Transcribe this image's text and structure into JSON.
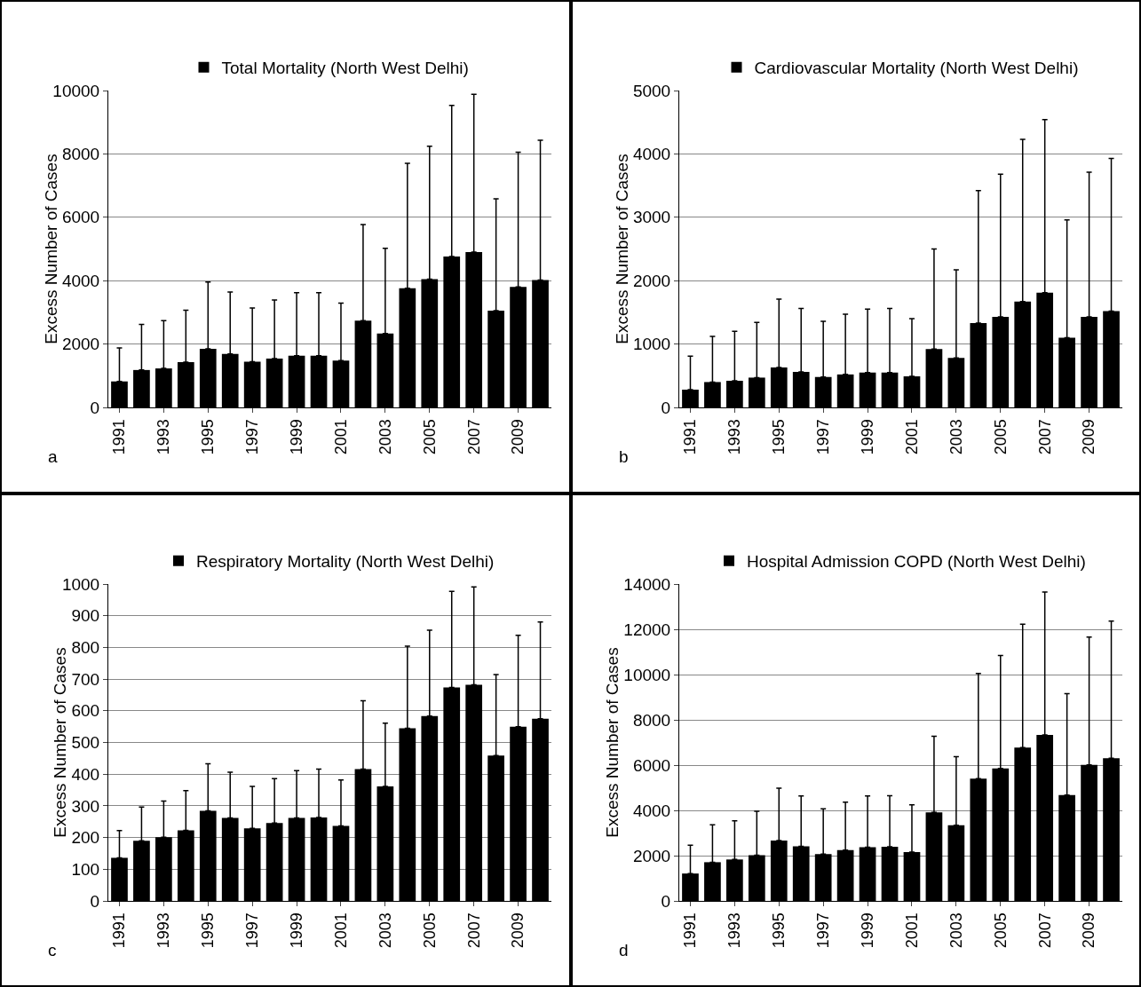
{
  "chart_data": [
    {
      "type": "bar",
      "categories": [
        "1991",
        null,
        "1993",
        null,
        "1995",
        null,
        "1997",
        null,
        "1999",
        null,
        "2001",
        null,
        "2003",
        null,
        "2005",
        null,
        "2007",
        null,
        "2009",
        null
      ],
      "ylabel": "Excess Number of Cases",
      "ylim": [
        0,
        10000
      ],
      "yticks": [
        0,
        2000,
        4000,
        6000,
        8000,
        10000
      ],
      "grid": "y",
      "legend": "top",
      "annotations": [
        "a"
      ],
      "series": [
        {
          "name": "Total Mortality (North West Delhi)",
          "color": "#000000",
          "values": [
            820,
            1180,
            1230,
            1430,
            1850,
            1690,
            1440,
            1540,
            1630,
            1630,
            1480,
            2740,
            2330,
            3760,
            4050,
            4760,
            4900,
            3050,
            3800,
            4020
          ],
          "errors": [
            [
              820,
              1880
            ],
            [
              1180,
              2620
            ],
            [
              1230,
              2740
            ],
            [
              1430,
              3070
            ],
            [
              1850,
              3960
            ],
            [
              1690,
              3640
            ],
            [
              1440,
              3140
            ],
            [
              1540,
              3390
            ],
            [
              1630,
              3620
            ],
            [
              1630,
              3620
            ],
            [
              1480,
              3290
            ],
            [
              2740,
              5770
            ],
            [
              2330,
              5020
            ],
            [
              3760,
              7700
            ],
            [
              4050,
              8240
            ],
            [
              4760,
              9530
            ],
            [
              4900,
              9880
            ],
            [
              3050,
              6580
            ],
            [
              3800,
              8050
            ],
            [
              4020,
              8430
            ]
          ]
        }
      ]
    },
    {
      "type": "bar",
      "categories": [
        "1991",
        null,
        "1993",
        null,
        "1995",
        null,
        "1997",
        null,
        "1999",
        null,
        "2001",
        null,
        "2003",
        null,
        "2005",
        null,
        "2007",
        null,
        "2009",
        null
      ],
      "ylabel": "Excess Number of Cases",
      "ylim": [
        0,
        5000
      ],
      "yticks": [
        0,
        1000,
        2000,
        3000,
        4000,
        5000
      ],
      "grid": "y",
      "legend": "top",
      "annotations": [
        "b"
      ],
      "series": [
        {
          "name": "Cardiovascular Mortality (North West Delhi)",
          "color": "#000000",
          "values": [
            280,
            400,
            420,
            470,
            630,
            560,
            480,
            520,
            550,
            550,
            490,
            920,
            780,
            1330,
            1430,
            1670,
            1810,
            1100,
            1430,
            1520
          ],
          "errors": [
            [
              280,
              810
            ],
            [
              400,
              1120
            ],
            [
              420,
              1200
            ],
            [
              470,
              1340
            ],
            [
              630,
              1710
            ],
            [
              560,
              1560
            ],
            [
              480,
              1360
            ],
            [
              520,
              1470
            ],
            [
              550,
              1550
            ],
            [
              550,
              1560
            ],
            [
              490,
              1400
            ],
            [
              920,
              2500
            ],
            [
              780,
              2170
            ],
            [
              1330,
              3420
            ],
            [
              1430,
              3680
            ],
            [
              1670,
              4230
            ],
            [
              1810,
              4540
            ],
            [
              1100,
              2960
            ],
            [
              1430,
              3710
            ],
            [
              1520,
              3930
            ]
          ]
        }
      ]
    },
    {
      "type": "bar",
      "categories": [
        "1991",
        null,
        "1993",
        null,
        "1995",
        null,
        "1997",
        null,
        "1999",
        null,
        "2001",
        null,
        "2003",
        null,
        "2005",
        null,
        "2007",
        null,
        "2009",
        null
      ],
      "ylabel": "Excess Number of Cases",
      "ylim": [
        0,
        1000
      ],
      "yticks": [
        0,
        100,
        200,
        300,
        400,
        500,
        600,
        700,
        800,
        900,
        1000
      ],
      "grid": "y",
      "legend": "top",
      "annotations": [
        "c"
      ],
      "series": [
        {
          "name": "Respiratory Mortality (North West Delhi)",
          "color": "#000000",
          "values": [
            136,
            190,
            201,
            223,
            284,
            262,
            229,
            246,
            262,
            263,
            237,
            416,
            361,
            545,
            583,
            674,
            682,
            459,
            550,
            575
          ],
          "errors": [
            [
              136,
              222
            ],
            [
              190,
              296
            ],
            [
              201,
              315
            ],
            [
              223,
              348
            ],
            [
              284,
              433
            ],
            [
              262,
              406
            ],
            [
              229,
              361
            ],
            [
              246,
              386
            ],
            [
              262,
              411
            ],
            [
              263,
              416
            ],
            [
              237,
              382
            ],
            [
              416,
              632
            ],
            [
              361,
              561
            ],
            [
              545,
              804
            ],
            [
              583,
              854
            ],
            [
              674,
              977
            ],
            [
              682,
              991
            ],
            [
              459,
              714
            ],
            [
              550,
              838
            ],
            [
              575,
              880
            ]
          ]
        }
      ]
    },
    {
      "type": "bar",
      "categories": [
        "1991",
        null,
        "1993",
        null,
        "1995",
        null,
        "1997",
        null,
        "1999",
        null,
        "2001",
        null,
        "2003",
        null,
        "2005",
        null,
        "2007",
        null,
        "2009",
        null
      ],
      "ylabel": "Excess Number of Cases",
      "ylim": [
        0,
        14000
      ],
      "yticks": [
        0,
        2000,
        4000,
        6000,
        8000,
        10000,
        12000,
        14000
      ],
      "grid": "y",
      "legend": "top",
      "annotations": [
        "d"
      ],
      "series": [
        {
          "name": "Hospital Admission COPD (North West Delhi)",
          "color": "#000000",
          "values": [
            1210,
            1710,
            1830,
            2020,
            2670,
            2410,
            2070,
            2250,
            2370,
            2390,
            2160,
            3910,
            3340,
            5400,
            5850,
            6770,
            7330,
            4680,
            6010,
            6300
          ],
          "errors": [
            [
              1210,
              2460
            ],
            [
              1710,
              3360
            ],
            [
              1830,
              3540
            ],
            [
              2020,
              3960
            ],
            [
              2670,
              4980
            ],
            [
              2410,
              4640
            ],
            [
              2070,
              4070
            ],
            [
              2250,
              4360
            ],
            [
              2370,
              4640
            ],
            [
              2390,
              4650
            ],
            [
              2160,
              4250
            ],
            [
              3910,
              7270
            ],
            [
              3340,
              6370
            ],
            [
              5400,
              10050
            ],
            [
              5850,
              10840
            ],
            [
              6770,
              12230
            ],
            [
              7330,
              13650
            ],
            [
              4680,
              9160
            ],
            [
              6010,
              11660
            ],
            [
              6300,
              12360
            ]
          ]
        }
      ]
    }
  ]
}
